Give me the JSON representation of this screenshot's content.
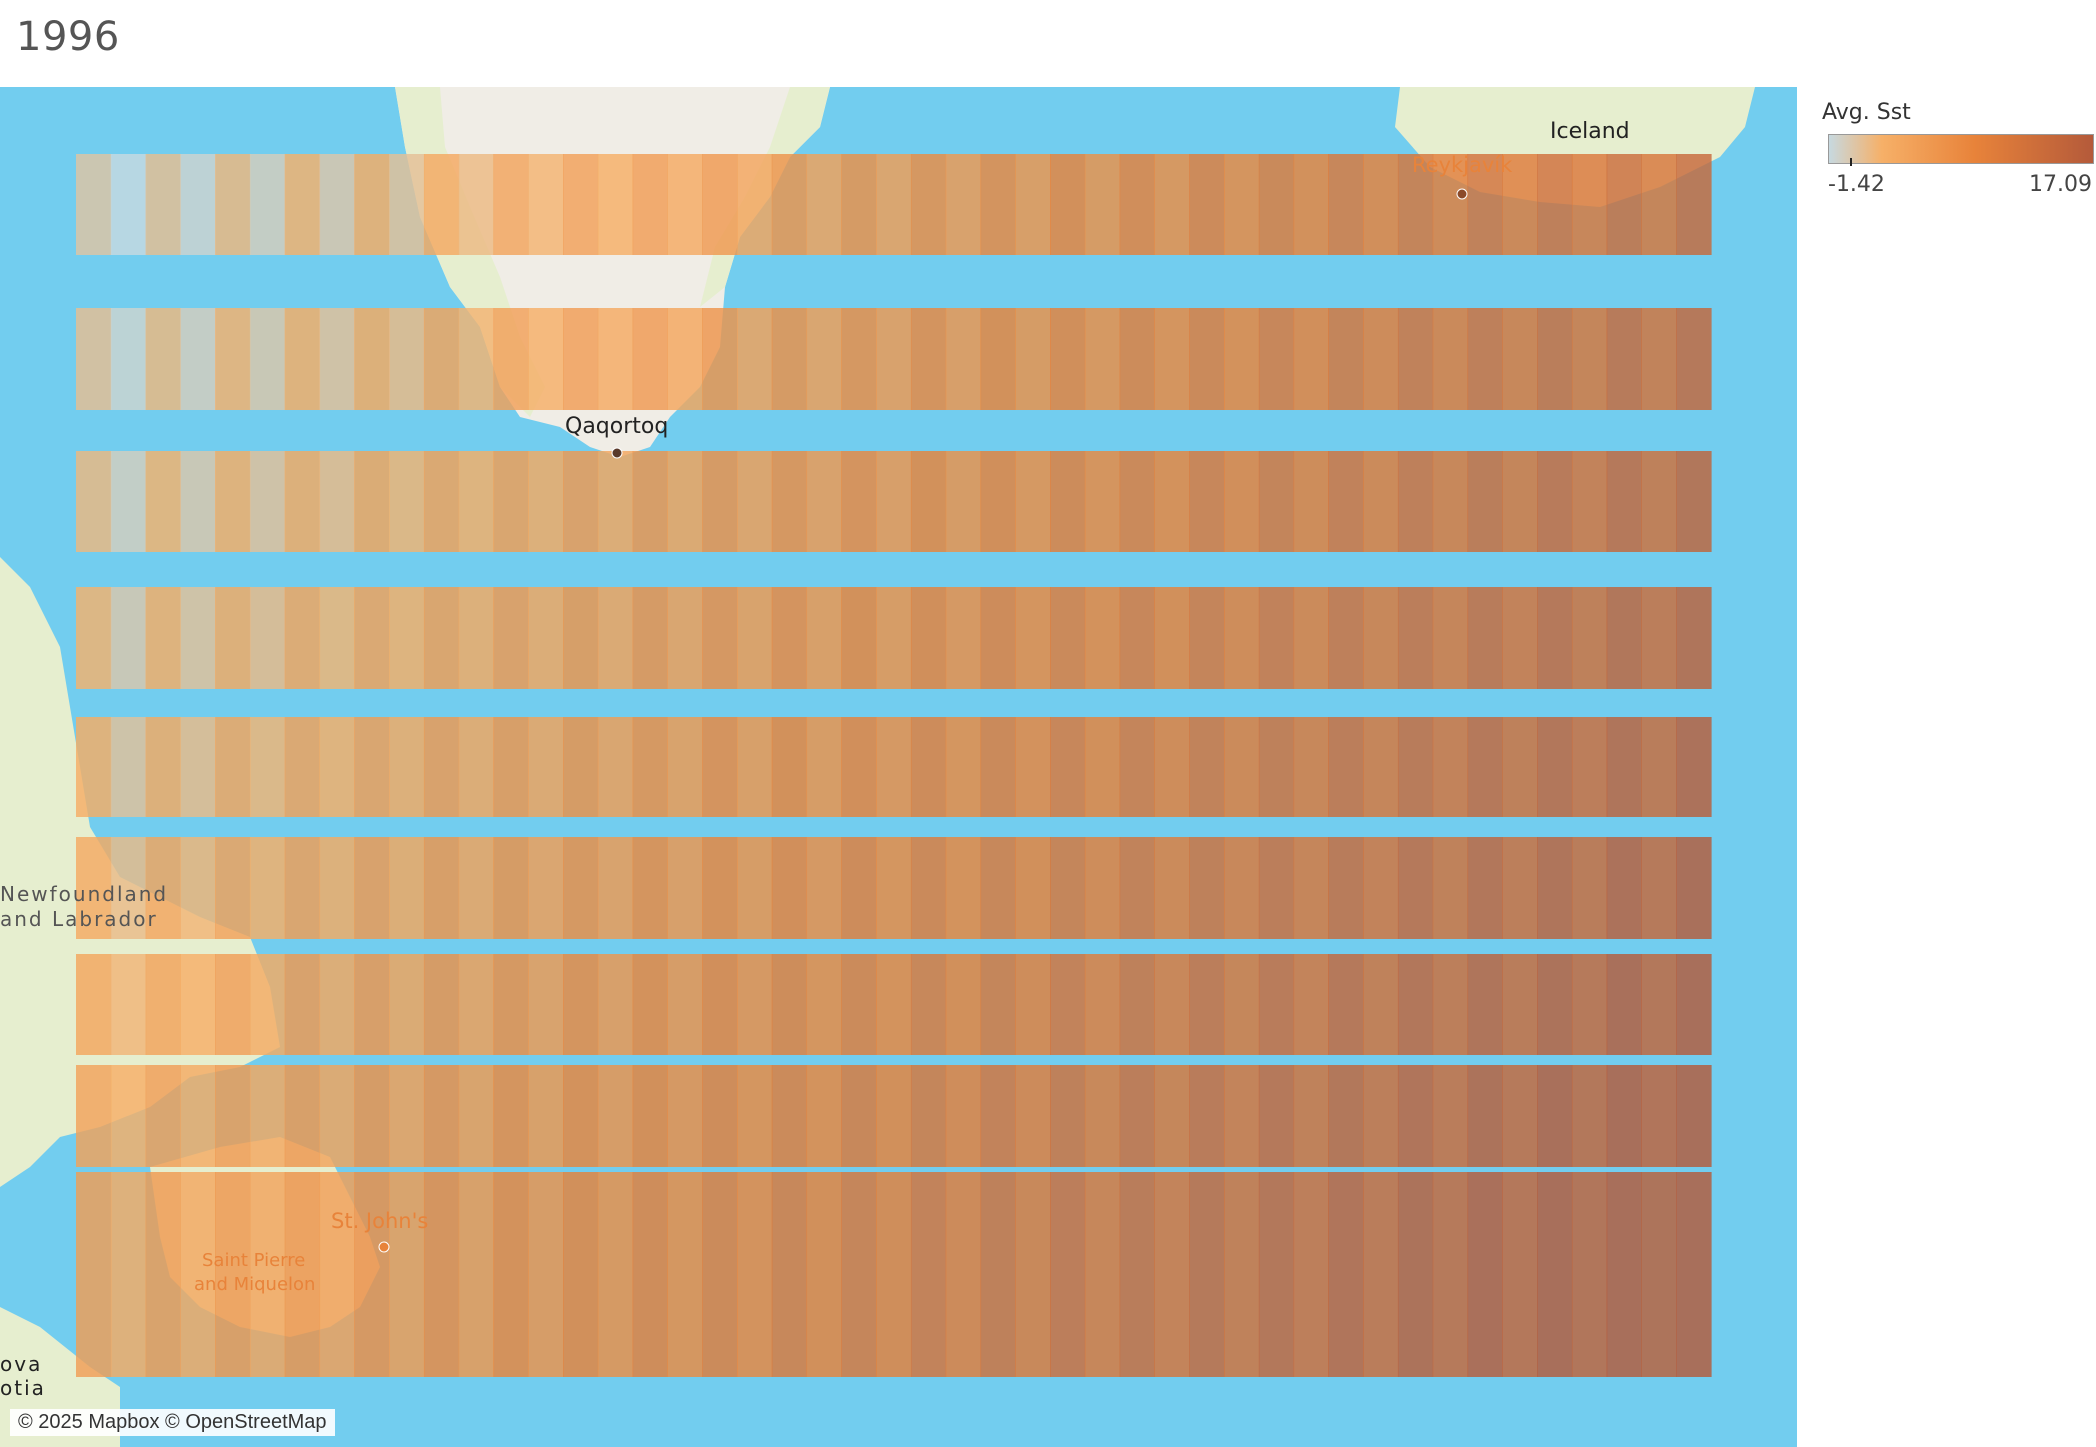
{
  "title": "1996",
  "legend": {
    "title": "Avg. Sst",
    "min_label": "-1.42",
    "max_label": "17.09",
    "min": -1.42,
    "max": 17.09,
    "colors": [
      "#c7d9e0",
      "#f6b068",
      "#e8833a",
      "#b45a3a"
    ]
  },
  "attribution": "© 2025 Mapbox © OpenStreetMap",
  "places": {
    "iceland": "Iceland",
    "reykjavik": "Reykjavík",
    "qaqortoq": "Qaqortoq",
    "newfoundland_1": "Newfoundland",
    "newfoundland_2": "and Labrador",
    "st_johns": "St. John's",
    "saint_pierre_1": "Saint Pierre",
    "saint_pierre_2": "and Miquelon",
    "nova_scotia_1": "ova",
    "nova_scotia_2": "otia"
  },
  "colors": {
    "ocean": "#72cdef",
    "land": "#e6eecf",
    "ice": "#f0ede6"
  }
}
